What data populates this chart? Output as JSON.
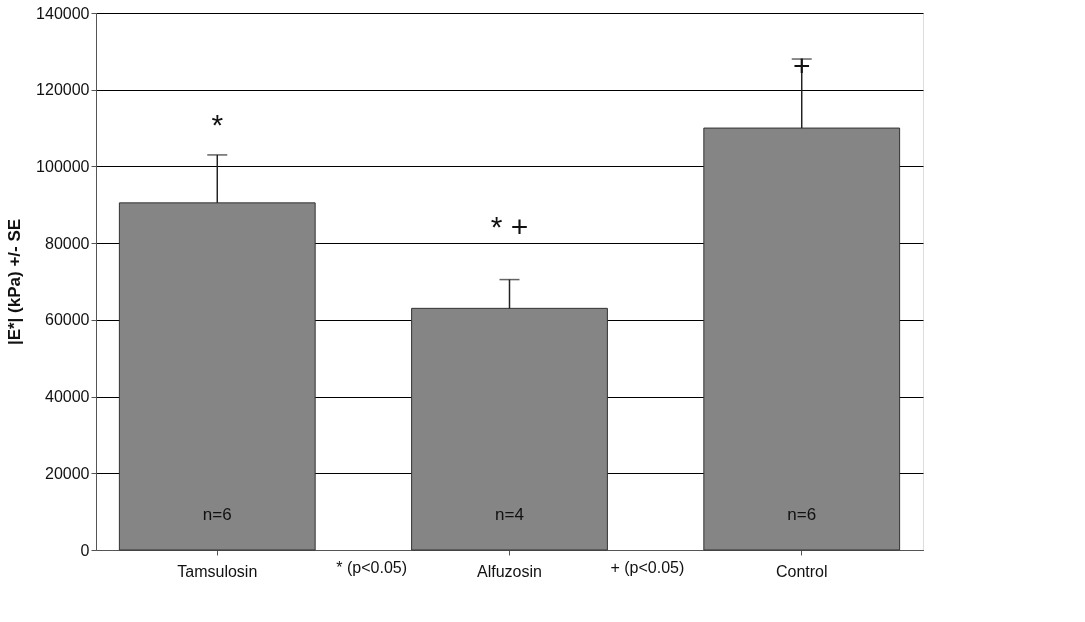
{
  "chart_data": {
    "type": "bar",
    "ylabel": "|E*| (kPa) +/- SE",
    "categories": [
      "Tamsulosin",
      "Alfuzosin",
      "Control"
    ],
    "values": [
      90500,
      63000,
      110000
    ],
    "errors": [
      12500,
      7500,
      18000
    ],
    "colors": [
      "#858585",
      "#858585",
      "#858585"
    ],
    "ylim": [
      0,
      140000
    ],
    "yticks": [
      0,
      20000,
      40000,
      60000,
      80000,
      100000,
      120000,
      140000
    ],
    "grid": "y",
    "annotations": [
      "*",
      "*  +",
      "+",
      "n=6",
      "n=4",
      "n=6",
      "* (p<0.05)",
      "+ (p<0.05)"
    ]
  }
}
